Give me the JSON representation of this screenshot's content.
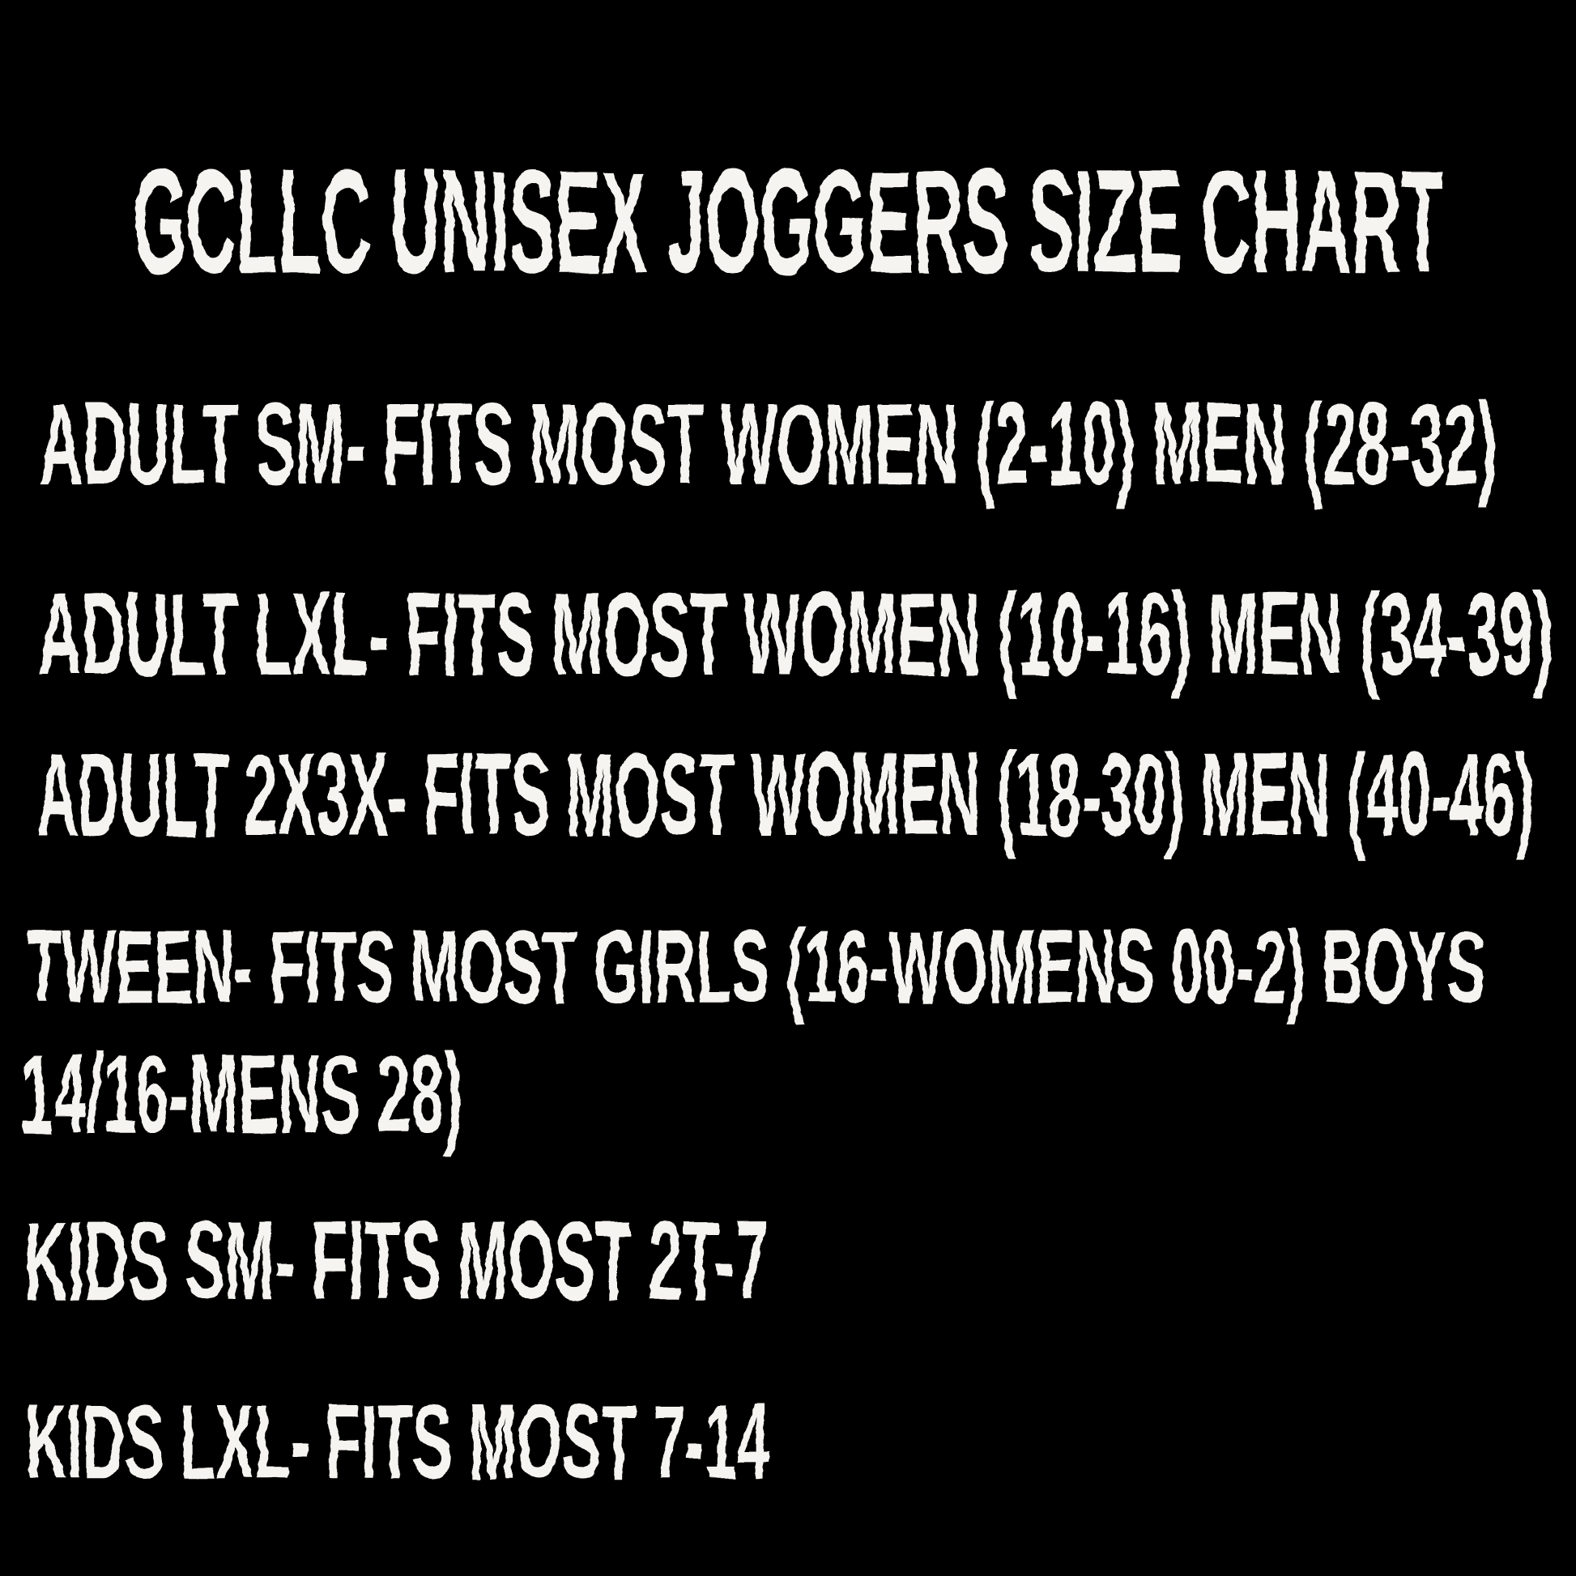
{
  "title": "GCLLC UNISEX JOGGERS SIZE CHART",
  "rows": [
    "ADULT SM- FITS MOST WOMEN (2-10) MEN (28-32)",
    "ADULT LXL- FITS MOST WOMEN (10-16) MEN (34-39)",
    "ADULT 2X3X- FITS MOST WOMEN (18-30) MEN (40-46)",
    "TWEEN- FITS MOST GIRLS (16-WOMENS 00-2) BOYS",
    "14/16-MENS 28)",
    "KIDS SM- FITS MOST 2T-7",
    "KIDS LXL- FITS MOST 7-14"
  ],
  "colors": {
    "background": "#000000",
    "text": "#f6f4f0"
  }
}
